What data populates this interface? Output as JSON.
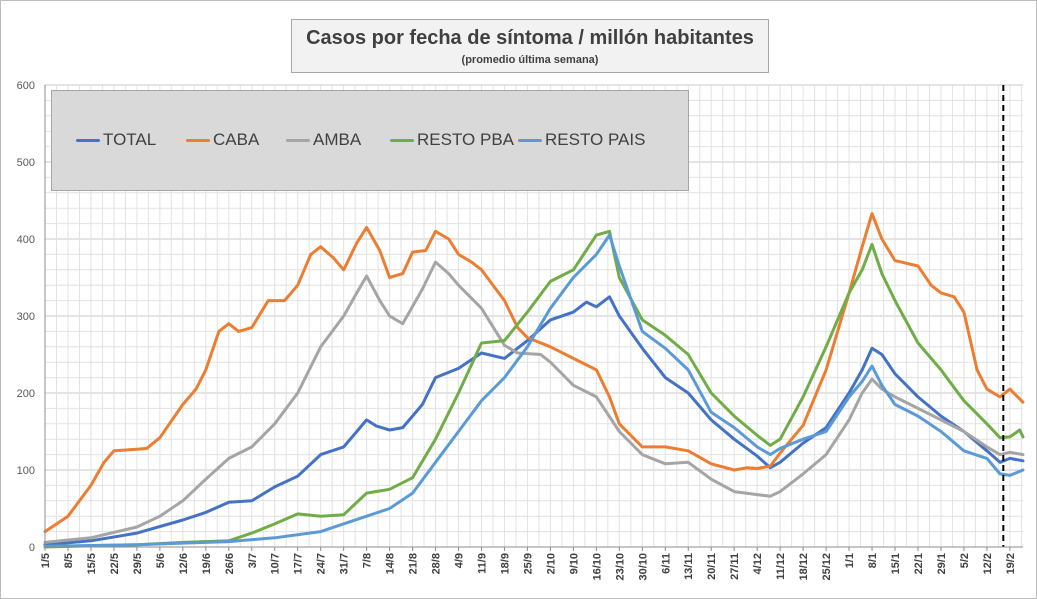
{
  "chart_data": {
    "type": "line",
    "title": "Casos por fecha de síntoma / millón habitantes",
    "subtitle": "(promedio última semana)",
    "ylim": [
      0,
      600
    ],
    "yticks": [
      0,
      100,
      200,
      300,
      400,
      500,
      600
    ],
    "grid": true,
    "legend_position": "top-left",
    "x_start": "2020-05-01",
    "x_end": "2021-02-23",
    "x_ticks": [
      "1/5",
      "8/5",
      "15/5",
      "22/5",
      "29/5",
      "5/6",
      "12/6",
      "19/6",
      "26/6",
      "3/7",
      "10/7",
      "17/7",
      "24/7",
      "31/7",
      "7/8",
      "14/8",
      "21/8",
      "28/8",
      "4/9",
      "11/9",
      "18/9",
      "25/9",
      "2/10",
      "9/10",
      "16/10",
      "23/10",
      "30/10",
      "6/11",
      "13/11",
      "20/11",
      "27/11",
      "4/12",
      "11/12",
      "18/12",
      "25/12",
      "1/1",
      "8/1",
      "15/1",
      "22/1",
      "29/1",
      "5/2",
      "12/2",
      "19/2"
    ],
    "vertical_marker": "2021-02-17",
    "series": [
      {
        "name": "TOTAL",
        "color": "#4472c4",
        "points": [
          [
            "2020-05-01",
            3
          ],
          [
            "2020-05-15",
            8
          ],
          [
            "2020-05-29",
            18
          ],
          [
            "2020-06-12",
            35
          ],
          [
            "2020-06-19",
            45
          ],
          [
            "2020-06-26",
            58
          ],
          [
            "2020-07-03",
            60
          ],
          [
            "2020-07-10",
            78
          ],
          [
            "2020-07-17",
            92
          ],
          [
            "2020-07-24",
            120
          ],
          [
            "2020-07-31",
            130
          ],
          [
            "2020-08-04",
            150
          ],
          [
            "2020-08-07",
            165
          ],
          [
            "2020-08-10",
            157
          ],
          [
            "2020-08-14",
            152
          ],
          [
            "2020-08-18",
            155
          ],
          [
            "2020-08-24",
            185
          ],
          [
            "2020-08-28",
            220
          ],
          [
            "2020-09-04",
            232
          ],
          [
            "2020-09-11",
            252
          ],
          [
            "2020-09-18",
            245
          ],
          [
            "2020-09-25",
            268
          ],
          [
            "2020-10-02",
            295
          ],
          [
            "2020-10-09",
            305
          ],
          [
            "2020-10-13",
            318
          ],
          [
            "2020-10-16",
            312
          ],
          [
            "2020-10-20",
            325
          ],
          [
            "2020-10-23",
            300
          ],
          [
            "2020-10-30",
            258
          ],
          [
            "2020-11-06",
            220
          ],
          [
            "2020-11-13",
            200
          ],
          [
            "2020-11-20",
            165
          ],
          [
            "2020-11-27",
            140
          ],
          [
            "2020-12-04",
            118
          ],
          [
            "2020-12-08",
            103
          ],
          [
            "2020-12-11",
            110
          ],
          [
            "2020-12-18",
            135
          ],
          [
            "2020-12-25",
            155
          ],
          [
            "2021-01-01",
            200
          ],
          [
            "2021-01-05",
            230
          ],
          [
            "2021-01-08",
            258
          ],
          [
            "2021-01-11",
            250
          ],
          [
            "2021-01-15",
            225
          ],
          [
            "2021-01-22",
            195
          ],
          [
            "2021-01-29",
            170
          ],
          [
            "2021-02-05",
            150
          ],
          [
            "2021-02-12",
            125
          ],
          [
            "2021-02-16",
            110
          ],
          [
            "2021-02-19",
            115
          ],
          [
            "2021-02-23",
            112
          ]
        ]
      },
      {
        "name": "CABA",
        "color": "#ed7d31",
        "points": [
          [
            "2020-05-01",
            20
          ],
          [
            "2020-05-08",
            40
          ],
          [
            "2020-05-15",
            80
          ],
          [
            "2020-05-19",
            110
          ],
          [
            "2020-05-22",
            125
          ],
          [
            "2020-05-29",
            127
          ],
          [
            "2020-06-01",
            128
          ],
          [
            "2020-06-05",
            142
          ],
          [
            "2020-06-12",
            185
          ],
          [
            "2020-06-16",
            205
          ],
          [
            "2020-06-19",
            230
          ],
          [
            "2020-06-23",
            280
          ],
          [
            "2020-06-26",
            290
          ],
          [
            "2020-06-29",
            280
          ],
          [
            "2020-07-03",
            285
          ],
          [
            "2020-07-08",
            320
          ],
          [
            "2020-07-13",
            320
          ],
          [
            "2020-07-17",
            340
          ],
          [
            "2020-07-21",
            380
          ],
          [
            "2020-07-24",
            390
          ],
          [
            "2020-07-28",
            375
          ],
          [
            "2020-07-31",
            360
          ],
          [
            "2020-08-04",
            395
          ],
          [
            "2020-08-07",
            415
          ],
          [
            "2020-08-11",
            385
          ],
          [
            "2020-08-14",
            350
          ],
          [
            "2020-08-18",
            355
          ],
          [
            "2020-08-21",
            383
          ],
          [
            "2020-08-25",
            385
          ],
          [
            "2020-08-28",
            410
          ],
          [
            "2020-09-01",
            400
          ],
          [
            "2020-09-04",
            380
          ],
          [
            "2020-09-08",
            370
          ],
          [
            "2020-09-11",
            360
          ],
          [
            "2020-09-18",
            320
          ],
          [
            "2020-09-22",
            285
          ],
          [
            "2020-09-25",
            272
          ],
          [
            "2020-10-02",
            260
          ],
          [
            "2020-10-09",
            245
          ],
          [
            "2020-10-16",
            230
          ],
          [
            "2020-10-20",
            195
          ],
          [
            "2020-10-23",
            160
          ],
          [
            "2020-10-30",
            130
          ],
          [
            "2020-11-06",
            130
          ],
          [
            "2020-11-13",
            125
          ],
          [
            "2020-11-20",
            108
          ],
          [
            "2020-11-27",
            100
          ],
          [
            "2020-12-01",
            103
          ],
          [
            "2020-12-04",
            102
          ],
          [
            "2020-12-08",
            105
          ],
          [
            "2020-12-11",
            122
          ],
          [
            "2020-12-18",
            158
          ],
          [
            "2020-12-25",
            230
          ],
          [
            "2021-01-01",
            330
          ],
          [
            "2021-01-05",
            390
          ],
          [
            "2021-01-08",
            433
          ],
          [
            "2021-01-11",
            400
          ],
          [
            "2021-01-15",
            372
          ],
          [
            "2021-01-22",
            365
          ],
          [
            "2021-01-26",
            340
          ],
          [
            "2021-01-29",
            330
          ],
          [
            "2021-02-02",
            325
          ],
          [
            "2021-02-05",
            305
          ],
          [
            "2021-02-09",
            230
          ],
          [
            "2021-02-12",
            205
          ],
          [
            "2021-02-16",
            195
          ],
          [
            "2021-02-19",
            205
          ],
          [
            "2021-02-23",
            188
          ]
        ]
      },
      {
        "name": "AMBA",
        "color": "#a5a5a5",
        "points": [
          [
            "2020-05-01",
            6
          ],
          [
            "2020-05-15",
            12
          ],
          [
            "2020-05-29",
            26
          ],
          [
            "2020-06-05",
            40
          ],
          [
            "2020-06-12",
            60
          ],
          [
            "2020-06-19",
            88
          ],
          [
            "2020-06-26",
            115
          ],
          [
            "2020-07-03",
            130
          ],
          [
            "2020-07-10",
            160
          ],
          [
            "2020-07-17",
            200
          ],
          [
            "2020-07-24",
            260
          ],
          [
            "2020-07-31",
            300
          ],
          [
            "2020-08-04",
            330
          ],
          [
            "2020-08-07",
            352
          ],
          [
            "2020-08-11",
            320
          ],
          [
            "2020-08-14",
            300
          ],
          [
            "2020-08-18",
            290
          ],
          [
            "2020-08-24",
            335
          ],
          [
            "2020-08-28",
            370
          ],
          [
            "2020-09-01",
            355
          ],
          [
            "2020-09-04",
            340
          ],
          [
            "2020-09-11",
            310
          ],
          [
            "2020-09-18",
            262
          ],
          [
            "2020-09-22",
            252
          ],
          [
            "2020-09-29",
            250
          ],
          [
            "2020-10-02",
            240
          ],
          [
            "2020-10-09",
            210
          ],
          [
            "2020-10-16",
            195
          ],
          [
            "2020-10-23",
            150
          ],
          [
            "2020-10-30",
            120
          ],
          [
            "2020-11-06",
            108
          ],
          [
            "2020-11-13",
            110
          ],
          [
            "2020-11-20",
            88
          ],
          [
            "2020-11-27",
            72
          ],
          [
            "2020-12-04",
            68
          ],
          [
            "2020-12-08",
            66
          ],
          [
            "2020-12-11",
            72
          ],
          [
            "2020-12-18",
            95
          ],
          [
            "2020-12-25",
            120
          ],
          [
            "2021-01-01",
            165
          ],
          [
            "2021-01-05",
            200
          ],
          [
            "2021-01-08",
            218
          ],
          [
            "2021-01-11",
            205
          ],
          [
            "2021-01-15",
            195
          ],
          [
            "2021-01-22",
            180
          ],
          [
            "2021-01-29",
            165
          ],
          [
            "2021-02-05",
            150
          ],
          [
            "2021-02-12",
            130
          ],
          [
            "2021-02-16",
            120
          ],
          [
            "2021-02-19",
            123
          ],
          [
            "2021-02-23",
            120
          ]
        ]
      },
      {
        "name": "RESTO PBA",
        "color": "#70ad47",
        "points": [
          [
            "2020-05-01",
            0
          ],
          [
            "2020-05-29",
            3
          ],
          [
            "2020-06-12",
            6
          ],
          [
            "2020-06-26",
            8
          ],
          [
            "2020-07-03",
            18
          ],
          [
            "2020-07-10",
            30
          ],
          [
            "2020-07-17",
            43
          ],
          [
            "2020-07-24",
            40
          ],
          [
            "2020-07-31",
            42
          ],
          [
            "2020-08-07",
            70
          ],
          [
            "2020-08-14",
            75
          ],
          [
            "2020-08-21",
            90
          ],
          [
            "2020-08-28",
            140
          ],
          [
            "2020-09-04",
            200
          ],
          [
            "2020-09-11",
            265
          ],
          [
            "2020-09-18",
            268
          ],
          [
            "2020-09-25",
            305
          ],
          [
            "2020-10-02",
            345
          ],
          [
            "2020-10-09",
            360
          ],
          [
            "2020-10-16",
            405
          ],
          [
            "2020-10-20",
            410
          ],
          [
            "2020-10-23",
            350
          ],
          [
            "2020-10-30",
            295
          ],
          [
            "2020-11-06",
            275
          ],
          [
            "2020-11-13",
            250
          ],
          [
            "2020-11-20",
            200
          ],
          [
            "2020-11-27",
            170
          ],
          [
            "2020-12-04",
            145
          ],
          [
            "2020-12-08",
            132
          ],
          [
            "2020-12-11",
            140
          ],
          [
            "2020-12-18",
            195
          ],
          [
            "2020-12-25",
            260
          ],
          [
            "2021-01-01",
            330
          ],
          [
            "2021-01-05",
            360
          ],
          [
            "2021-01-08",
            393
          ],
          [
            "2021-01-11",
            355
          ],
          [
            "2021-01-15",
            320
          ],
          [
            "2021-01-22",
            265
          ],
          [
            "2021-01-29",
            230
          ],
          [
            "2021-02-05",
            190
          ],
          [
            "2021-02-12",
            160
          ],
          [
            "2021-02-16",
            142
          ],
          [
            "2021-02-19",
            143
          ],
          [
            "2021-02-22",
            152
          ],
          [
            "2021-02-23",
            143
          ]
        ]
      },
      {
        "name": "RESTO PAIS",
        "color": "#5b9bd5",
        "points": [
          [
            "2020-05-01",
            1
          ],
          [
            "2020-05-29",
            3
          ],
          [
            "2020-06-12",
            5
          ],
          [
            "2020-06-26",
            7
          ],
          [
            "2020-07-10",
            12
          ],
          [
            "2020-07-24",
            20
          ],
          [
            "2020-08-07",
            40
          ],
          [
            "2020-08-14",
            50
          ],
          [
            "2020-08-21",
            70
          ],
          [
            "2020-08-28",
            110
          ],
          [
            "2020-09-04",
            150
          ],
          [
            "2020-09-11",
            190
          ],
          [
            "2020-09-18",
            220
          ],
          [
            "2020-09-25",
            260
          ],
          [
            "2020-10-02",
            310
          ],
          [
            "2020-10-09",
            350
          ],
          [
            "2020-10-16",
            380
          ],
          [
            "2020-10-20",
            405
          ],
          [
            "2020-10-23",
            365
          ],
          [
            "2020-10-30",
            280
          ],
          [
            "2020-11-06",
            258
          ],
          [
            "2020-11-13",
            230
          ],
          [
            "2020-11-20",
            175
          ],
          [
            "2020-11-27",
            155
          ],
          [
            "2020-12-04",
            130
          ],
          [
            "2020-12-08",
            120
          ],
          [
            "2020-12-11",
            128
          ],
          [
            "2020-12-18",
            140
          ],
          [
            "2020-12-25",
            150
          ],
          [
            "2021-01-01",
            195
          ],
          [
            "2021-01-05",
            215
          ],
          [
            "2021-01-08",
            235
          ],
          [
            "2021-01-11",
            210
          ],
          [
            "2021-01-15",
            185
          ],
          [
            "2021-01-22",
            170
          ],
          [
            "2021-01-29",
            150
          ],
          [
            "2021-02-05",
            125
          ],
          [
            "2021-02-12",
            115
          ],
          [
            "2021-02-16",
            95
          ],
          [
            "2021-02-19",
            93
          ],
          [
            "2021-02-23",
            100
          ]
        ]
      }
    ]
  }
}
